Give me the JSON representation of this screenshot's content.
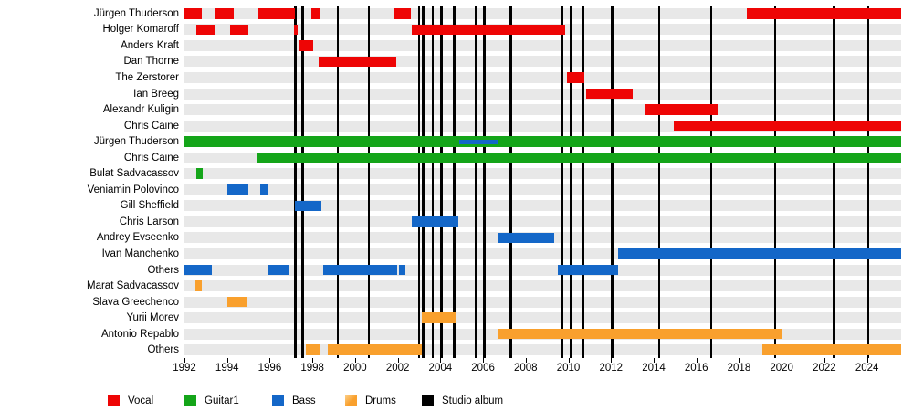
{
  "chart_data": {
    "type": "bar",
    "subtype": "gantt-band-membership-timeline",
    "title": "",
    "xlabel": "",
    "ylabel": "",
    "xlim": [
      1992,
      2025.6
    ],
    "x_ticks": [
      1992,
      1994,
      1996,
      1998,
      2000,
      2002,
      2004,
      2006,
      2008,
      2010,
      2012,
      2014,
      2016,
      2018,
      2020,
      2022,
      2024
    ],
    "grid": false,
    "legend_position": "bottom",
    "legend": [
      {
        "label": "Vocal",
        "role": "Vocal",
        "color": "#ee0505"
      },
      {
        "label": "Guitar1",
        "role": "Guitar1",
        "color": "#14a519"
      },
      {
        "label": "Bass",
        "role": "Bass",
        "color": "#1467c8"
      },
      {
        "label": "Drums",
        "role": "Drums",
        "color": "#f9a02d"
      },
      {
        "label": "Studio album",
        "role": "StudioAlbum",
        "color": "#000000"
      }
    ],
    "album_lines": [
      1997.2,
      1997.55,
      1999.2,
      2000.65,
      2003.0,
      2003.2,
      2003.65,
      2004.05,
      2004.65,
      2005.65,
      2006.05,
      2007.3,
      2009.7,
      2010.1,
      2010.7,
      2012.05,
      2014.25,
      2016.7,
      2019.7,
      2022.45,
      2024.05
    ],
    "rows": [
      {
        "label": "Jürgen Thuderson",
        "role": "Vocal",
        "segments": [
          [
            1992.0,
            1992.8
          ],
          [
            1993.45,
            1994.3
          ],
          [
            1995.45,
            1997.2
          ],
          [
            1997.95,
            1998.35
          ],
          [
            2001.85,
            2002.6
          ],
          [
            2018.35,
            2025.6
          ]
        ]
      },
      {
        "label": "Holger Komaroff",
        "role": "Vocal",
        "segments": [
          [
            1992.55,
            1993.45
          ],
          [
            1994.15,
            1995.0
          ],
          [
            1997.15,
            1997.3
          ],
          [
            2002.65,
            2009.85
          ]
        ]
      },
      {
        "label": "Anders Kraft",
        "role": "Vocal",
        "segments": [
          [
            1997.35,
            1998.05
          ]
        ]
      },
      {
        "label": "Dan Thorne",
        "role": "Vocal",
        "segments": [
          [
            1998.3,
            2001.95
          ]
        ]
      },
      {
        "label": "The Zerstorer",
        "role": "Vocal",
        "segments": [
          [
            2009.95,
            2010.75
          ]
        ]
      },
      {
        "label": "Ian Breeg",
        "role": "Vocal",
        "segments": [
          [
            2010.85,
            2013.0
          ]
        ]
      },
      {
        "label": "Alexandr Kuligin",
        "role": "Vocal",
        "segments": [
          [
            2013.6,
            2017.0
          ]
        ]
      },
      {
        "label": "Chris Caine",
        "role": "Vocal",
        "segments": [
          [
            2014.95,
            2025.6
          ]
        ]
      },
      {
        "label": "Jürgen Thuderson",
        "role": "Guitar1",
        "segments": [
          [
            1992.0,
            2025.6
          ]
        ],
        "overlay": {
          "role": "Bass",
          "segments": [
            [
              2004.9,
              2006.7
            ]
          ]
        }
      },
      {
        "label": "Chris Caine",
        "role": "Guitar1",
        "segments": [
          [
            1995.4,
            2025.6
          ]
        ]
      },
      {
        "label": "Bulat Sadvacassov",
        "role": "Guitar1",
        "segments": [
          [
            1992.55,
            1992.85
          ]
        ]
      },
      {
        "label": "Veniamin Polovinco",
        "role": "Bass",
        "segments": [
          [
            1994.0,
            1995.0
          ],
          [
            1995.55,
            1995.9
          ]
        ]
      },
      {
        "label": "Gill Sheffield",
        "role": "Bass",
        "segments": [
          [
            1997.2,
            1998.4
          ]
        ]
      },
      {
        "label": "Chris Larson",
        "role": "Bass",
        "segments": [
          [
            2002.65,
            2004.85
          ]
        ]
      },
      {
        "label": "Andrey Evseenko",
        "role": "Bass",
        "segments": [
          [
            2006.7,
            2009.35
          ]
        ]
      },
      {
        "label": "Ivan Manchenko",
        "role": "Bass",
        "segments": [
          [
            2012.35,
            2025.6
          ]
        ]
      },
      {
        "label": "Others",
        "role": "Bass",
        "segments": [
          [
            1992.0,
            1993.3
          ],
          [
            1995.9,
            1996.9
          ],
          [
            1998.5,
            2001.98
          ],
          [
            2002.06,
            2002.35
          ],
          [
            2009.5,
            2012.35
          ]
        ]
      },
      {
        "label": "Marat Sadvacassov",
        "role": "Drums",
        "segments": [
          [
            1992.5,
            1992.8
          ]
        ]
      },
      {
        "label": "Slava Greechenco",
        "role": "Drums",
        "segments": [
          [
            1994.0,
            1994.95
          ]
        ]
      },
      {
        "label": "Yurii Morev",
        "role": "Drums",
        "segments": [
          [
            2003.15,
            2004.75
          ]
        ]
      },
      {
        "label": "Antonio Repablo",
        "role": "Drums",
        "segments": [
          [
            2006.7,
            2020.05
          ]
        ]
      },
      {
        "label": "Others",
        "role": "Drums",
        "segments": [
          [
            1997.7,
            1998.35
          ],
          [
            1998.7,
            2003.15
          ],
          [
            2019.1,
            2025.6
          ]
        ]
      }
    ]
  }
}
